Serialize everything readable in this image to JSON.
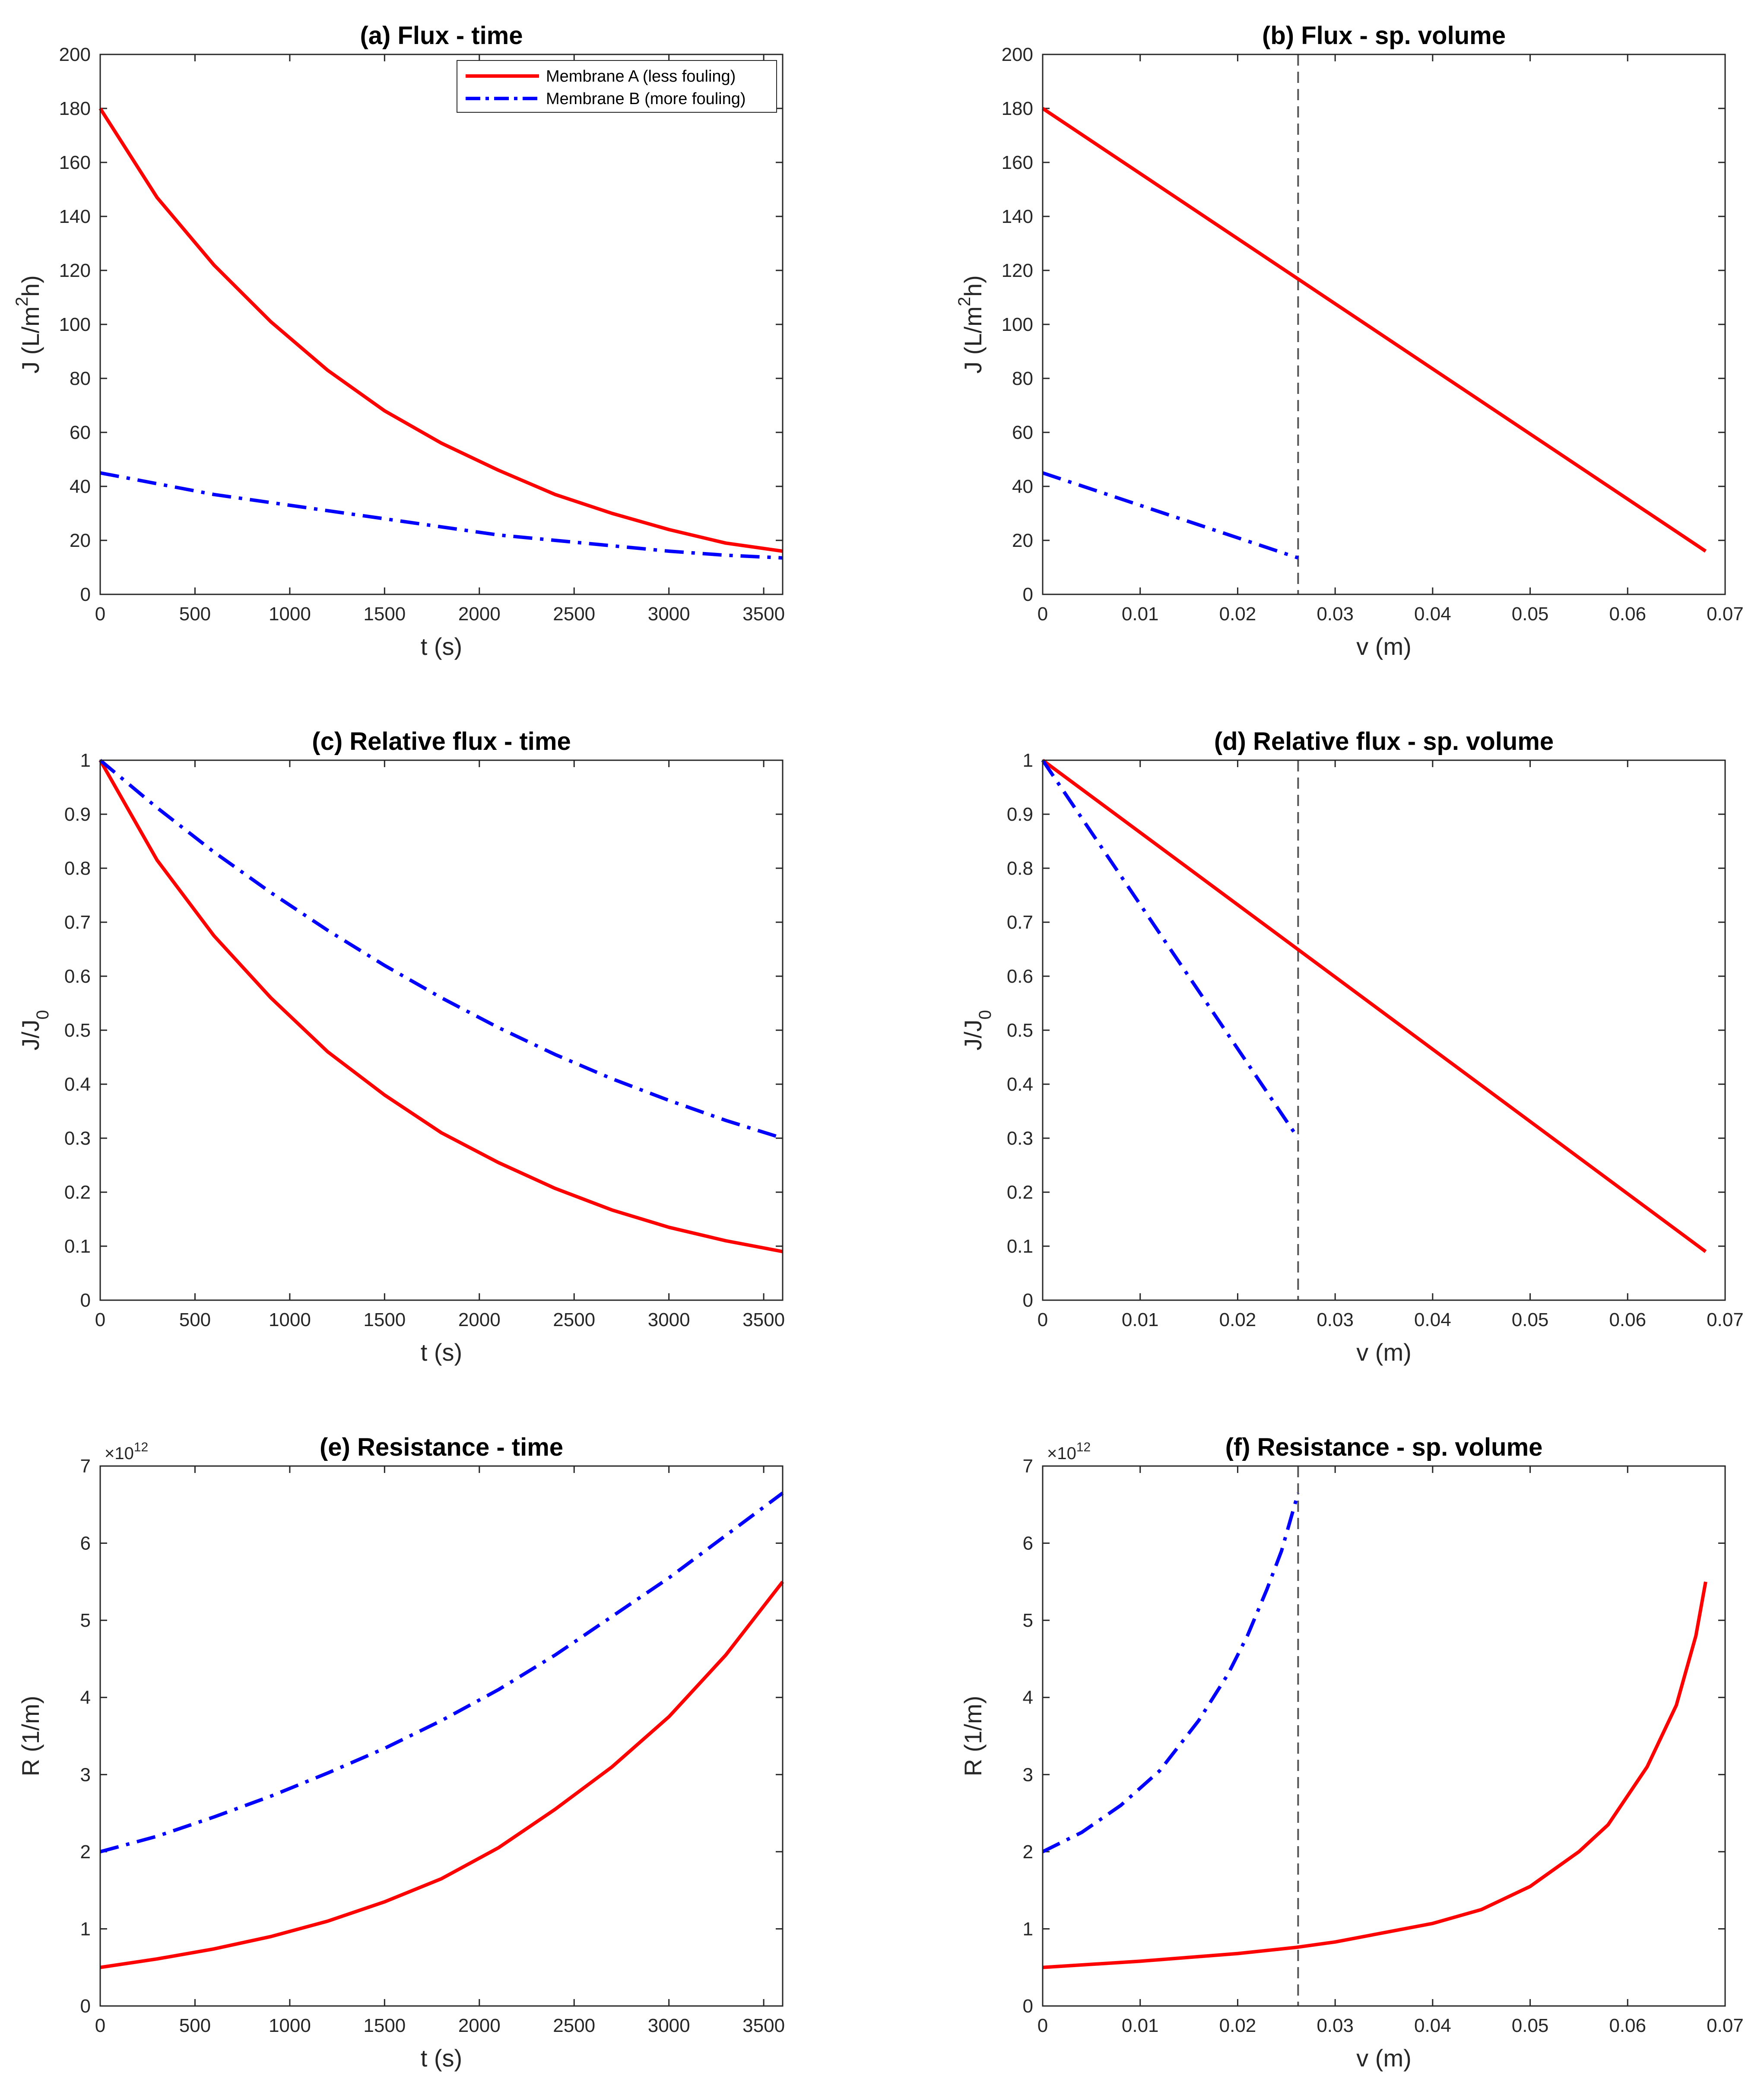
{
  "figure": {
    "legend": {
      "position": "top-right",
      "entries": [
        {
          "series": "A",
          "label": "Membrane A (less fouling)"
        },
        {
          "series": "B",
          "label": "Membrane B (more fouling)"
        }
      ]
    },
    "series_styles": {
      "A": {
        "color": "#ff0000",
        "dash": "solid"
      },
      "B": {
        "color": "#0000ff",
        "dash": "dashdot"
      }
    },
    "reference_line_color": "#555555"
  },
  "chart_data": [
    {
      "id": "a",
      "type": "line",
      "title": "(a) Flux - time",
      "xlabel": "t (s)",
      "ylabel": "J (L/m²h)",
      "ylabel_parts": [
        "J (L/m",
        "2",
        "h)"
      ],
      "xlim": [
        0,
        3600
      ],
      "ylim": [
        0,
        200
      ],
      "xticks": [
        0,
        500,
        1000,
        1500,
        2000,
        2500,
        3000,
        3500
      ],
      "yticks": [
        0,
        20,
        40,
        60,
        80,
        100,
        120,
        140,
        160,
        180,
        200
      ],
      "xtick_labels": [
        "0",
        "500",
        "1000",
        "1500",
        "2000",
        "2500",
        "3000",
        "3500"
      ],
      "ytick_labels": [
        "0",
        "20",
        "40",
        "60",
        "80",
        "100",
        "120",
        "140",
        "160",
        "180",
        "200"
      ],
      "exponent": null,
      "vline": null,
      "legend": true,
      "series": [
        {
          "name": "Membrane A (less fouling)",
          "key": "A",
          "x": [
            0,
            300,
            600,
            900,
            1200,
            1500,
            1800,
            2100,
            2400,
            2700,
            3000,
            3300,
            3600
          ],
          "y": [
            180,
            147,
            122,
            101,
            83,
            68,
            56,
            46,
            37,
            30,
            24,
            19,
            16
          ]
        },
        {
          "name": "Membrane B (more fouling)",
          "key": "B",
          "x": [
            0,
            300,
            600,
            900,
            1200,
            1500,
            1800,
            2100,
            2400,
            2700,
            3000,
            3300,
            3600
          ],
          "y": [
            45,
            41,
            37,
            34,
            31,
            28,
            25,
            22,
            20,
            18,
            16,
            14.5,
            13.5
          ]
        }
      ]
    },
    {
      "id": "b",
      "type": "line",
      "title": "(b) Flux - sp. volume",
      "xlabel": "v (m)",
      "ylabel": "J (L/m²h)",
      "ylabel_parts": [
        "J (L/m",
        "2",
        "h)"
      ],
      "xlim": [
        0,
        0.07
      ],
      "ylim": [
        0,
        200
      ],
      "xticks": [
        0,
        0.01,
        0.02,
        0.03,
        0.04,
        0.05,
        0.06,
        0.07
      ],
      "yticks": [
        0,
        20,
        40,
        60,
        80,
        100,
        120,
        140,
        160,
        180,
        200
      ],
      "xtick_labels": [
        "0",
        "0.01",
        "0.02",
        "0.03",
        "0.04",
        "0.05",
        "0.06",
        "0.07"
      ],
      "ytick_labels": [
        "0",
        "20",
        "40",
        "60",
        "80",
        "100",
        "120",
        "140",
        "160",
        "180",
        "200"
      ],
      "exponent": null,
      "vline": 0.0262,
      "legend": false,
      "series": [
        {
          "name": "Membrane A (less fouling)",
          "key": "A",
          "x": [
            0,
            0.068
          ],
          "y": [
            180,
            16
          ]
        },
        {
          "name": "Membrane B (more fouling)",
          "key": "B",
          "x": [
            0,
            0.0262
          ],
          "y": [
            45,
            13.5
          ]
        }
      ]
    },
    {
      "id": "c",
      "type": "line",
      "title": "(c) Relative flux - time",
      "xlabel": "t (s)",
      "ylabel": "J/J0",
      "ylabel_parts": [
        "J/J",
        "0",
        ""
      ],
      "xlim": [
        0,
        3600
      ],
      "ylim": [
        0,
        1
      ],
      "xticks": [
        0,
        500,
        1000,
        1500,
        2000,
        2500,
        3000,
        3500
      ],
      "yticks": [
        0,
        0.1,
        0.2,
        0.3,
        0.4,
        0.5,
        0.6,
        0.7,
        0.8,
        0.9,
        1
      ],
      "xtick_labels": [
        "0",
        "500",
        "1000",
        "1500",
        "2000",
        "2500",
        "3000",
        "3500"
      ],
      "ytick_labels": [
        "0",
        "0.1",
        "0.2",
        "0.3",
        "0.4",
        "0.5",
        "0.6",
        "0.7",
        "0.8",
        "0.9",
        "1"
      ],
      "exponent": null,
      "vline": null,
      "legend": false,
      "series": [
        {
          "name": "Membrane A (less fouling)",
          "key": "A",
          "x": [
            0,
            300,
            600,
            900,
            1200,
            1500,
            1800,
            2100,
            2400,
            2700,
            3000,
            3300,
            3600
          ],
          "y": [
            1,
            0.815,
            0.675,
            0.56,
            0.46,
            0.38,
            0.31,
            0.255,
            0.207,
            0.167,
            0.135,
            0.11,
            0.09
          ]
        },
        {
          "name": "Membrane B (more fouling)",
          "key": "B",
          "x": [
            0,
            300,
            600,
            900,
            1200,
            1500,
            1800,
            2100,
            2400,
            2700,
            3000,
            3300,
            3600
          ],
          "y": [
            1,
            0.912,
            0.83,
            0.755,
            0.685,
            0.62,
            0.56,
            0.505,
            0.455,
            0.41,
            0.37,
            0.333,
            0.3
          ]
        }
      ]
    },
    {
      "id": "d",
      "type": "line",
      "title": "(d) Relative flux - sp. volume",
      "xlabel": "v (m)",
      "ylabel": "J/J0",
      "ylabel_parts": [
        "J/J",
        "0",
        ""
      ],
      "xlim": [
        0,
        0.07
      ],
      "ylim": [
        0,
        1
      ],
      "xticks": [
        0,
        0.01,
        0.02,
        0.03,
        0.04,
        0.05,
        0.06,
        0.07
      ],
      "yticks": [
        0,
        0.1,
        0.2,
        0.3,
        0.4,
        0.5,
        0.6,
        0.7,
        0.8,
        0.9,
        1
      ],
      "xtick_labels": [
        "0",
        "0.01",
        "0.02",
        "0.03",
        "0.04",
        "0.05",
        "0.06",
        "0.07"
      ],
      "ytick_labels": [
        "0",
        "0.1",
        "0.2",
        "0.3",
        "0.4",
        "0.5",
        "0.6",
        "0.7",
        "0.8",
        "0.9",
        "1"
      ],
      "exponent": null,
      "vline": 0.0262,
      "legend": false,
      "series": [
        {
          "name": "Membrane A (less fouling)",
          "key": "A",
          "x": [
            0,
            0.068
          ],
          "y": [
            1,
            0.09
          ]
        },
        {
          "name": "Membrane B (more fouling)",
          "key": "B",
          "x": [
            0,
            0.0262
          ],
          "y": [
            1,
            0.3
          ]
        }
      ]
    },
    {
      "id": "e",
      "type": "line",
      "title": "(e) Resistance - time",
      "xlabel": "t (s)",
      "ylabel": "R (1/m)",
      "ylabel_parts": [
        "R (1/m)",
        "",
        ""
      ],
      "xlim": [
        0,
        3600
      ],
      "ylim": [
        0,
        7
      ],
      "xticks": [
        0,
        500,
        1000,
        1500,
        2000,
        2500,
        3000,
        3500
      ],
      "yticks": [
        0,
        1,
        2,
        3,
        4,
        5,
        6,
        7
      ],
      "xtick_labels": [
        "0",
        "500",
        "1000",
        "1500",
        "2000",
        "2500",
        "3000",
        "3500"
      ],
      "ytick_labels": [
        "0",
        "1",
        "2",
        "3",
        "4",
        "5",
        "6",
        "7"
      ],
      "exponent": {
        "base": "×10",
        "power": "12"
      },
      "vline": null,
      "legend": false,
      "series": [
        {
          "name": "Membrane A (less fouling)",
          "key": "A",
          "x": [
            0,
            300,
            600,
            900,
            1200,
            1500,
            1800,
            2100,
            2400,
            2700,
            3000,
            3300,
            3600
          ],
          "y": [
            0.5,
            0.61,
            0.74,
            0.9,
            1.1,
            1.35,
            1.65,
            2.05,
            2.55,
            3.1,
            3.75,
            4.55,
            5.5
          ]
        },
        {
          "name": "Membrane B (more fouling)",
          "key": "B",
          "x": [
            0,
            300,
            600,
            900,
            1200,
            1500,
            1800,
            2100,
            2400,
            2700,
            3000,
            3300,
            3600
          ],
          "y": [
            2.0,
            2.2,
            2.45,
            2.72,
            3.02,
            3.34,
            3.7,
            4.1,
            4.55,
            5.05,
            5.55,
            6.1,
            6.65
          ]
        }
      ]
    },
    {
      "id": "f",
      "type": "line",
      "title": "(f) Resistance - sp. volume",
      "xlabel": "v (m)",
      "ylabel": "R (1/m)",
      "ylabel_parts": [
        "R (1/m)",
        "",
        ""
      ],
      "xlim": [
        0,
        0.07
      ],
      "ylim": [
        0,
        7
      ],
      "xticks": [
        0,
        0.01,
        0.02,
        0.03,
        0.04,
        0.05,
        0.06,
        0.07
      ],
      "yticks": [
        0,
        1,
        2,
        3,
        4,
        5,
        6,
        7
      ],
      "xtick_labels": [
        "0",
        "0.01",
        "0.02",
        "0.03",
        "0.04",
        "0.05",
        "0.06",
        "0.07"
      ],
      "ytick_labels": [
        "0",
        "1",
        "2",
        "3",
        "4",
        "5",
        "6",
        "7"
      ],
      "exponent": {
        "base": "×10",
        "power": "12"
      },
      "vline": 0.0262,
      "legend": false,
      "series": [
        {
          "name": "Membrane A (less fouling)",
          "key": "A",
          "x": [
            0,
            0.01,
            0.02,
            0.026,
            0.03,
            0.04,
            0.045,
            0.05,
            0.055,
            0.058,
            0.062,
            0.065,
            0.067,
            0.068
          ],
          "y": [
            0.5,
            0.58,
            0.68,
            0.76,
            0.83,
            1.07,
            1.25,
            1.55,
            2.0,
            2.35,
            3.1,
            3.9,
            4.8,
            5.5
          ]
        },
        {
          "name": "Membrane B (more fouling)",
          "key": "B",
          "x": [
            0,
            0.004,
            0.008,
            0.012,
            0.016,
            0.019,
            0.021,
            0.023,
            0.0245,
            0.0262
          ],
          "y": [
            2.0,
            2.25,
            2.6,
            3.05,
            3.7,
            4.3,
            4.8,
            5.4,
            5.9,
            6.65
          ]
        }
      ]
    }
  ]
}
